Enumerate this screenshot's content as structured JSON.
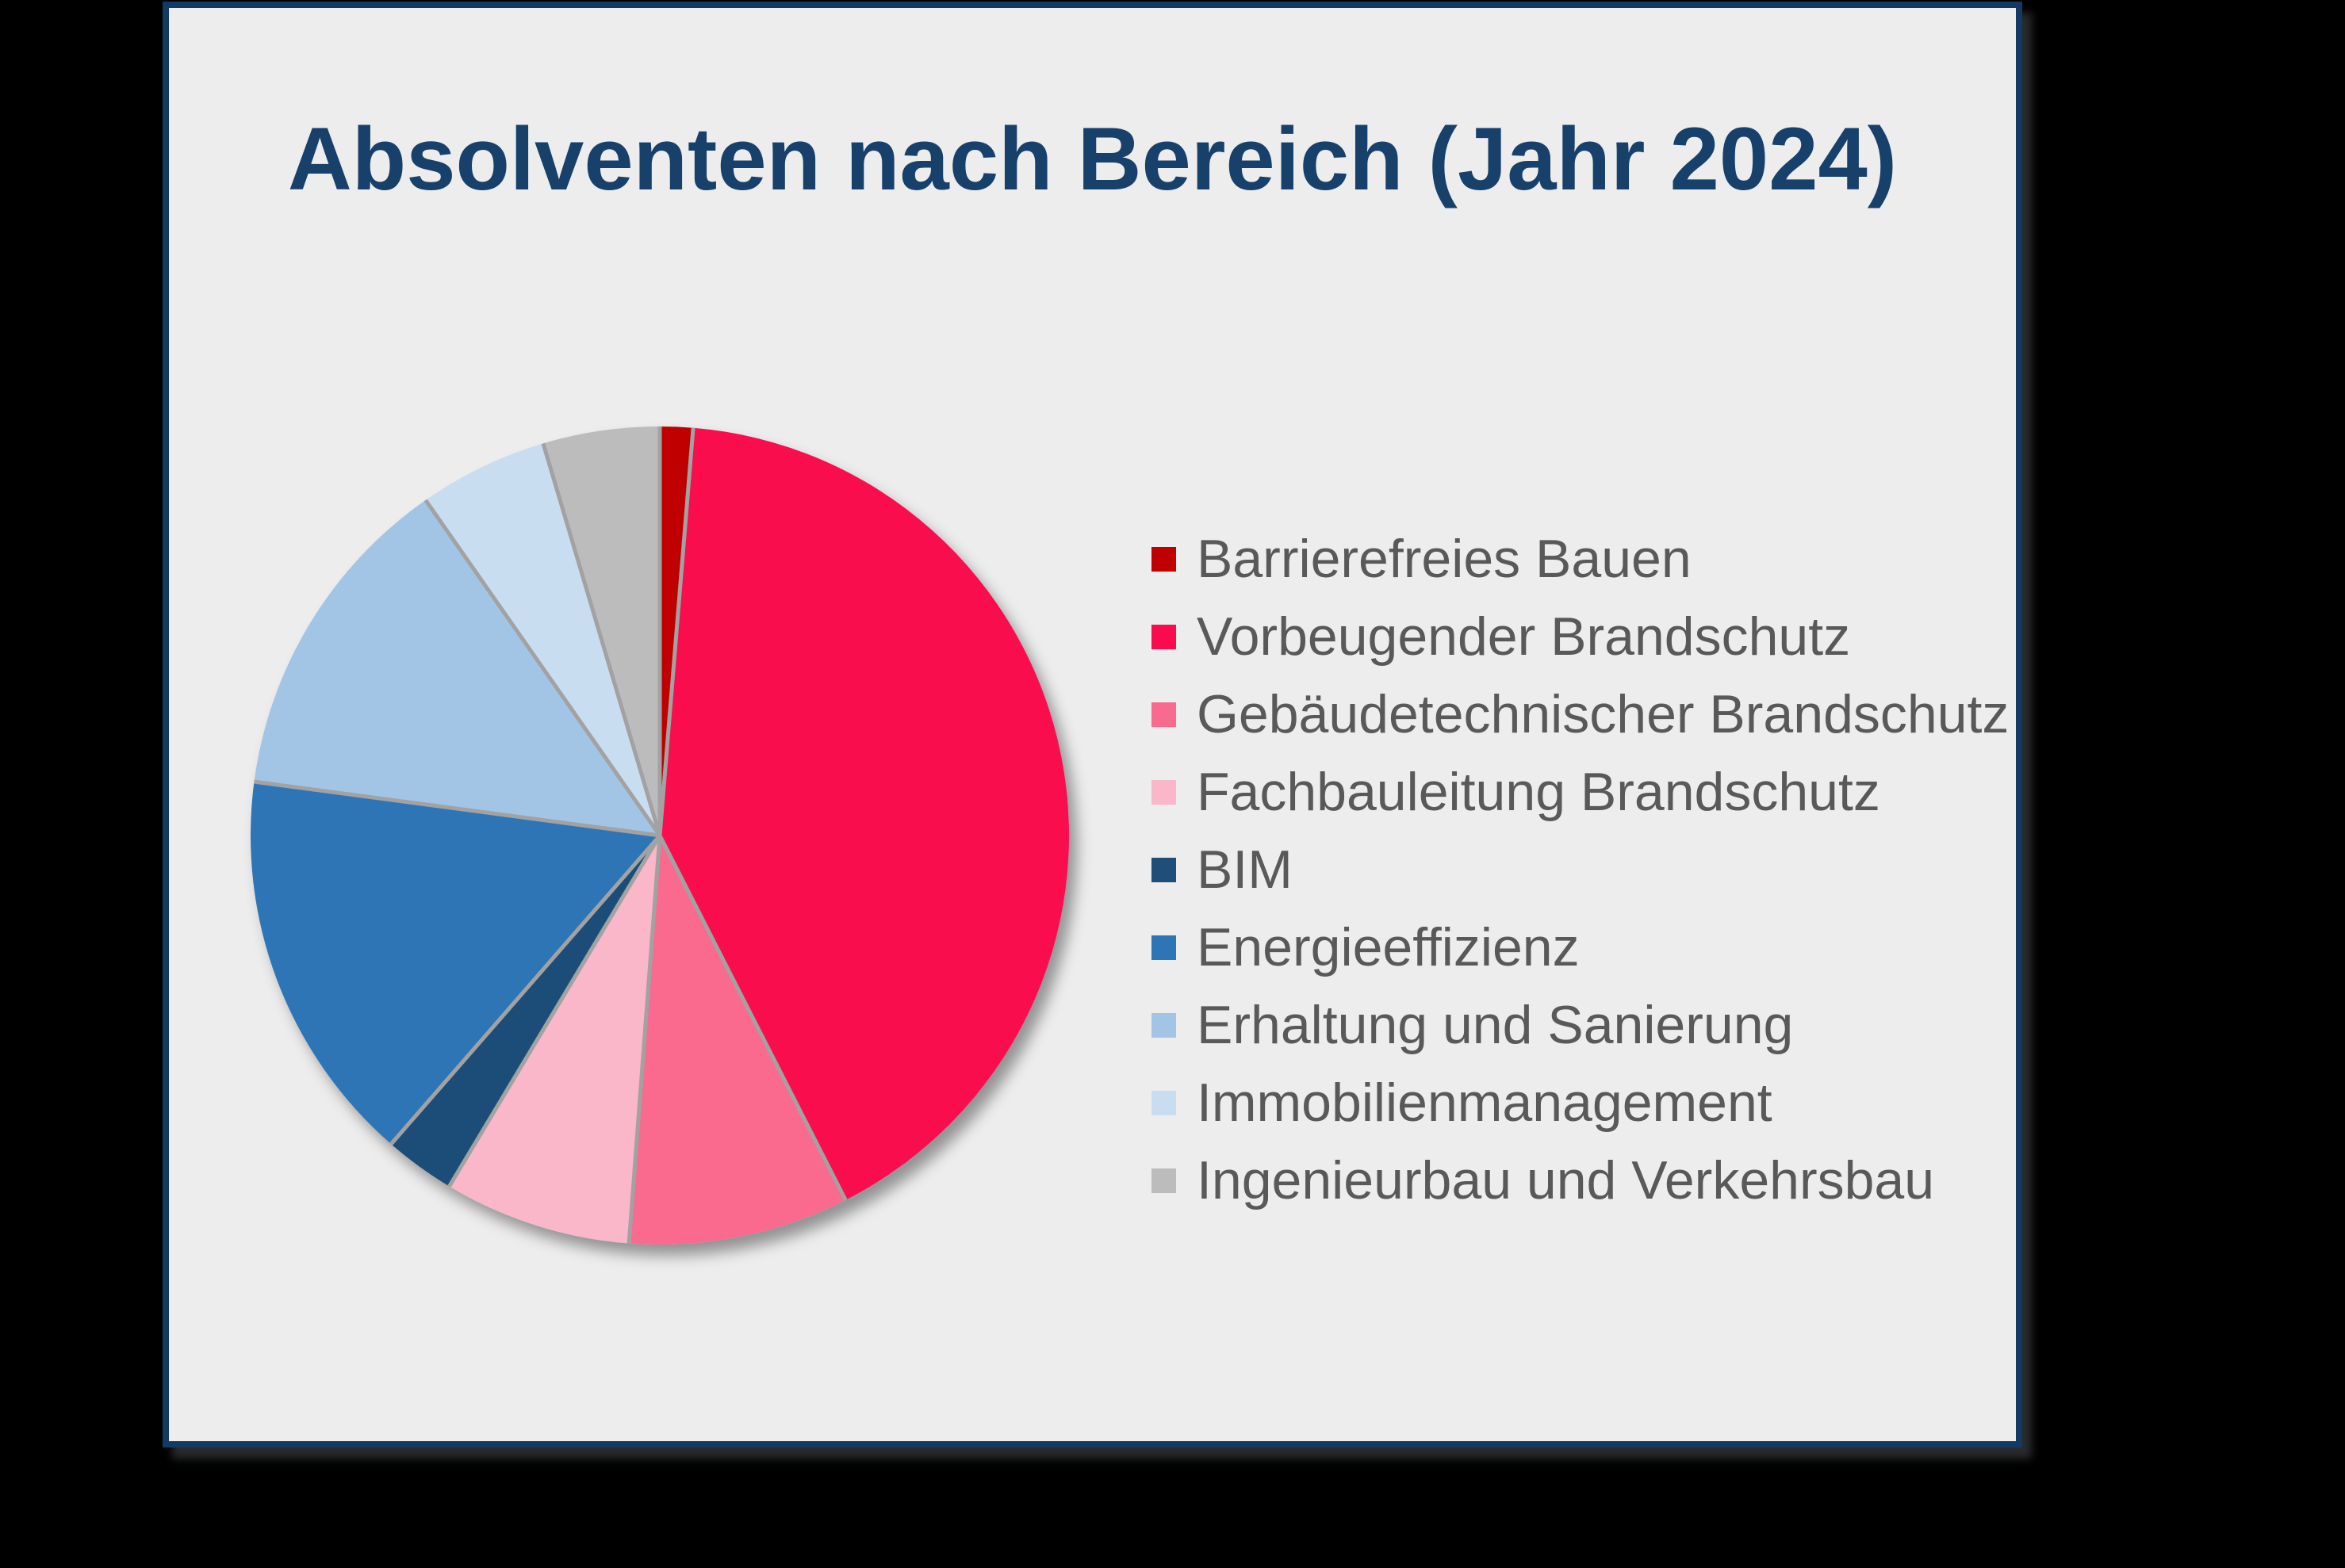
{
  "page": {
    "background": "#000000"
  },
  "card": {
    "background": "#EDEDED",
    "border_color": "#123A63"
  },
  "chart_data": {
    "type": "pie",
    "title": "Absolventen nach Bereich (Jahr 2024)",
    "title_color": "#17406B",
    "legend_position": "right",
    "start_angle_deg": 0,
    "direction": "clockwise",
    "grid": false,
    "data_labels_shown": false,
    "slices": [
      {
        "label": "Barrierefreies Bauen",
        "value_percent": 1.3,
        "color": "#C00000"
      },
      {
        "label": "Vorbeugender Brandschutz",
        "value_percent": 41.2,
        "color": "#F90B4D"
      },
      {
        "label": "Gebäudetechnischer Brandschutz",
        "value_percent": 8.7,
        "color": "#F96B8E"
      },
      {
        "label": "Fachbauleitung Brandschutz",
        "value_percent": 7.4,
        "color": "#F9B7C9"
      },
      {
        "label": "BIM",
        "value_percent": 2.8,
        "color": "#1F4E79"
      },
      {
        "label": "Energieeffizienz",
        "value_percent": 15.7,
        "color": "#2E75B6"
      },
      {
        "label": "Erhaltung und Sanierung",
        "value_percent": 13.2,
        "color": "#A2C5E6"
      },
      {
        "label": "Immobilienmanagement",
        "value_percent": 5.1,
        "color": "#C9DDF1"
      },
      {
        "label": "Ingenieurbau und Verkehrsbau",
        "value_percent": 4.6,
        "color": "#BCBCBC"
      }
    ],
    "separator_color": "#A2A2A2",
    "legend_text_color": "#595959"
  }
}
